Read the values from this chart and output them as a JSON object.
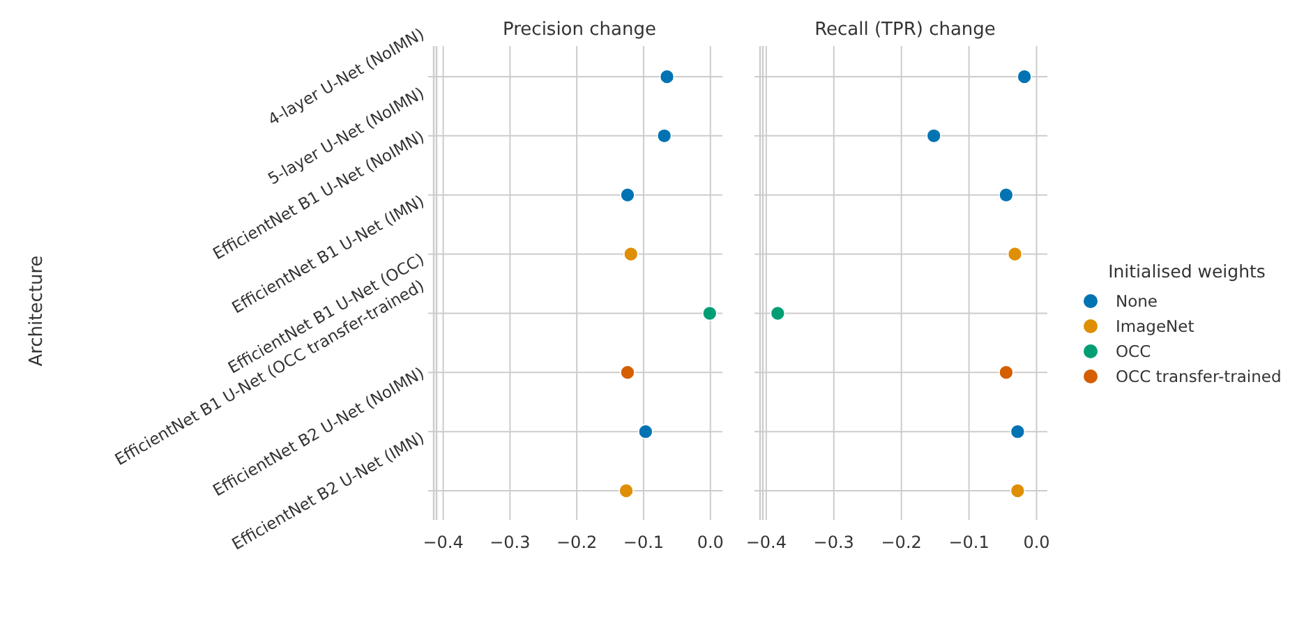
{
  "chart_data": [
    {
      "type": "scatter",
      "orientation": "horizontal",
      "title": "Precision change",
      "ylabel": "Architecture",
      "categories": [
        "4-layer U-Net (NoIMN)",
        "5-layer U-Net (NoIMN)",
        "EfficientNet B1 U-Net (NoIMN)",
        "EfficientNet B1 U-Net (IMN)",
        "EfficientNet B1 U-Net (OCC)",
        "EfficientNet B1 U-Net (OCC transfer-trained)",
        "EfficientNet B2 U-Net (NoIMN)",
        "EfficientNet B2 U-Net (IMN)"
      ],
      "xlim": [
        -0.41,
        0.018
      ],
      "xticks": [
        {
          "value": -0.4,
          "label": "−0.4"
        },
        {
          "value": -0.3,
          "label": "−0.3"
        },
        {
          "value": -0.2,
          "label": "−0.2"
        },
        {
          "value": -0.1,
          "label": "−0.1"
        },
        {
          "value": 0,
          "label": "0.0"
        }
      ],
      "grid": true,
      "marker": "circle",
      "legend": false,
      "series": [
        {
          "color": "#0173b2",
          "values": [
            -0.065,
            -0.069,
            -0.124,
            null,
            null,
            null,
            -0.097,
            null
          ]
        },
        {
          "color": "#de8f05",
          "values": [
            null,
            null,
            null,
            -0.119,
            null,
            null,
            null,
            -0.126
          ]
        },
        {
          "color": "#029e73",
          "values": [
            null,
            null,
            null,
            null,
            -0.001,
            null,
            null,
            null
          ]
        },
        {
          "color": "#d55e00",
          "values": [
            null,
            null,
            null,
            null,
            null,
            -0.124,
            null,
            null
          ]
        }
      ]
    },
    {
      "type": "scatter",
      "orientation": "horizontal",
      "title": "Recall (TPR) change",
      "legend_title": "Initialised weights",
      "categories": [
        null,
        null,
        null,
        null,
        null,
        null,
        null,
        null
      ],
      "xlim": [
        -0.405,
        0.016
      ],
      "xticks": [
        {
          "value": -0.4,
          "label": "−0.4"
        },
        {
          "value": -0.3,
          "label": "−0.3"
        },
        {
          "value": -0.2,
          "label": "−0.2"
        },
        {
          "value": -0.1,
          "label": "−0.1"
        },
        {
          "value": 0,
          "label": "0.0"
        }
      ],
      "grid": true,
      "marker": "circle",
      "legend": "right",
      "tick_labels": "x",
      "series": [
        {
          "name": "None",
          "color": "#0173b2",
          "values": [
            -0.018,
            -0.152,
            -0.045,
            null,
            null,
            null,
            -0.028,
            null
          ]
        },
        {
          "name": "ImageNet",
          "color": "#de8f05",
          "values": [
            null,
            null,
            null,
            -0.032,
            null,
            null,
            null,
            -0.028
          ]
        },
        {
          "name": "OCC",
          "color": "#029e73",
          "values": [
            null,
            null,
            null,
            null,
            -0.383,
            null,
            null,
            null
          ]
        },
        {
          "name": "OCC transfer-trained",
          "color": "#d55e00",
          "values": [
            null,
            null,
            null,
            null,
            null,
            -0.045,
            null,
            null
          ]
        }
      ]
    }
  ]
}
